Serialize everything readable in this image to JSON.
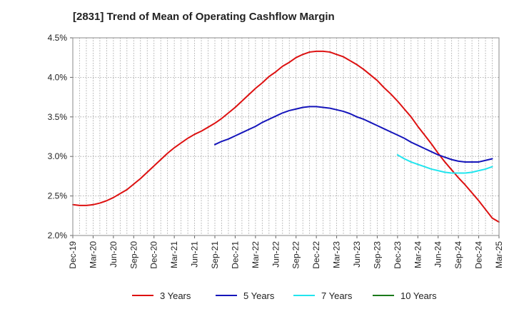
{
  "chart_data": {
    "type": "line",
    "title": "[2831]  Trend of Mean of Operating Cashflow Margin",
    "xlabel": "",
    "ylabel": "",
    "ylim": [
      2.0,
      4.5
    ],
    "y_ticks": [
      "2.0%",
      "2.5%",
      "3.0%",
      "3.5%",
      "4.0%",
      "4.5%"
    ],
    "y_tick_values": [
      2.0,
      2.5,
      3.0,
      3.5,
      4.0,
      4.5
    ],
    "x_tick_labels": [
      "Dec-19",
      "Mar-20",
      "Jun-20",
      "Sep-20",
      "Dec-20",
      "Mar-21",
      "Jun-21",
      "Sep-21",
      "Dec-21",
      "Mar-22",
      "Jun-22",
      "Sep-22",
      "Dec-22",
      "Mar-23",
      "Jun-23",
      "Sep-23",
      "Dec-23",
      "Mar-24",
      "Jun-24",
      "Sep-24",
      "Dec-24",
      "Mar-25"
    ],
    "x_start": "Dec-19",
    "x_end": "Mar-25",
    "months_span": 63,
    "grid": true,
    "legend_position": "bottom",
    "series": [
      {
        "name": "3 Years",
        "color": "#dd1111",
        "start_month": 0,
        "values": [
          2.39,
          2.38,
          2.38,
          2.39,
          2.41,
          2.44,
          2.48,
          2.53,
          2.58,
          2.65,
          2.72,
          2.8,
          2.88,
          2.96,
          3.04,
          3.11,
          3.17,
          3.23,
          3.28,
          3.32,
          3.37,
          3.42,
          3.48,
          3.55,
          3.62,
          3.7,
          3.78,
          3.86,
          3.93,
          4.01,
          4.07,
          4.14,
          4.19,
          4.25,
          4.29,
          4.32,
          4.33,
          4.33,
          4.32,
          4.29,
          4.26,
          4.21,
          4.16,
          4.1,
          4.03,
          3.96,
          3.87,
          3.79,
          3.7,
          3.6,
          3.5,
          3.38,
          3.27,
          3.16,
          3.04,
          2.93,
          2.83,
          2.73,
          2.64,
          2.54,
          2.44,
          2.33,
          2.22,
          2.17
        ]
      },
      {
        "name": "5 Years",
        "color": "#1515bb",
        "start_month": 21,
        "values": [
          3.15,
          3.19,
          3.22,
          3.26,
          3.3,
          3.34,
          3.38,
          3.43,
          3.47,
          3.51,
          3.55,
          3.58,
          3.6,
          3.62,
          3.63,
          3.63,
          3.62,
          3.61,
          3.59,
          3.57,
          3.54,
          3.5,
          3.47,
          3.43,
          3.39,
          3.35,
          3.31,
          3.27,
          3.23,
          3.18,
          3.14,
          3.1,
          3.06,
          3.02,
          2.99,
          2.96,
          2.94,
          2.93,
          2.93,
          2.93,
          2.95,
          2.97
        ]
      },
      {
        "name": "7 Years",
        "color": "#22e5ee",
        "start_month": 48,
        "values": [
          3.02,
          2.97,
          2.93,
          2.9,
          2.87,
          2.84,
          2.82,
          2.8,
          2.79,
          2.79,
          2.79,
          2.8,
          2.82,
          2.84,
          2.87
        ]
      },
      {
        "name": "10 Years",
        "color": "#1a7a1a",
        "start_month": null,
        "values": []
      }
    ]
  }
}
